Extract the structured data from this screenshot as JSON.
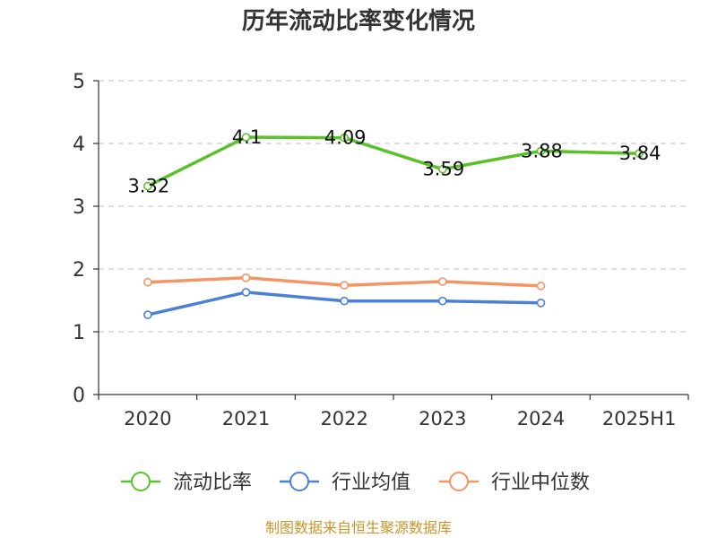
{
  "chart_data": {
    "type": "line",
    "title": "历年流动比率变化情况",
    "categories": [
      "2020",
      "2021",
      "2022",
      "2023",
      "2024",
      "2025H1"
    ],
    "ylim": [
      0,
      5
    ],
    "yticks": [
      0,
      1,
      2,
      3,
      4,
      5
    ],
    "grid": true,
    "legend_position": "bottom",
    "series": [
      {
        "name": "流动比率",
        "color": "#5ac229",
        "values": [
          3.32,
          4.1,
          4.09,
          3.59,
          3.88,
          3.84
        ],
        "labels": [
          "3.32",
          "4.1",
          "4.09",
          "3.59",
          "3.88",
          "3.84"
        ]
      },
      {
        "name": "行业均值",
        "color": "#4c7fd8",
        "values": [
          1.27,
          1.63,
          1.49,
          1.49,
          1.46,
          null
        ]
      },
      {
        "name": "行业中位数",
        "color": "#f59563",
        "values": [
          1.79,
          1.86,
          1.74,
          1.8,
          1.73,
          null
        ]
      }
    ]
  },
  "footer": {
    "source": "制图数据来自恒生聚源数据库"
  }
}
